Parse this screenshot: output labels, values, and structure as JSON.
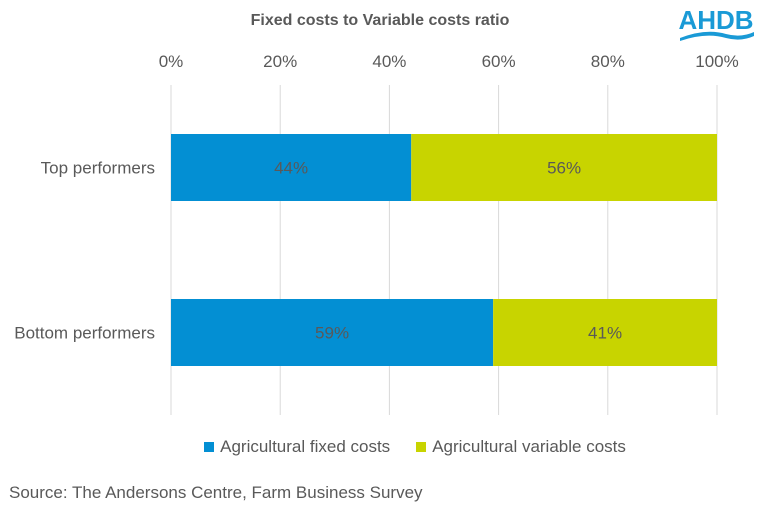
{
  "chart_data": {
    "type": "bar",
    "orientation": "horizontal",
    "stacked": "100%",
    "title": "Fixed costs to Variable costs ratio",
    "categories": [
      "Top performers",
      "Bottom performers"
    ],
    "series": [
      {
        "name": "Agricultural fixed costs",
        "values": [
          44,
          59
        ],
        "labels": [
          "44%",
          "59%"
        ],
        "color": "#038fd3"
      },
      {
        "name": "Agricultural variable costs",
        "values": [
          56,
          41
        ],
        "labels": [
          "56%",
          "41%"
        ],
        "color": "#c8d400"
      }
    ],
    "xlim": [
      0,
      100
    ],
    "xticks": [
      "0%",
      "20%",
      "40%",
      "60%",
      "80%",
      "100%"
    ],
    "axis_position": "top",
    "grid": true,
    "legend": "bottom"
  },
  "logo": {
    "text": "AHDB",
    "color": "#1a9ad6"
  },
  "source": "Source: The Andersons Centre, Farm Business Survey"
}
